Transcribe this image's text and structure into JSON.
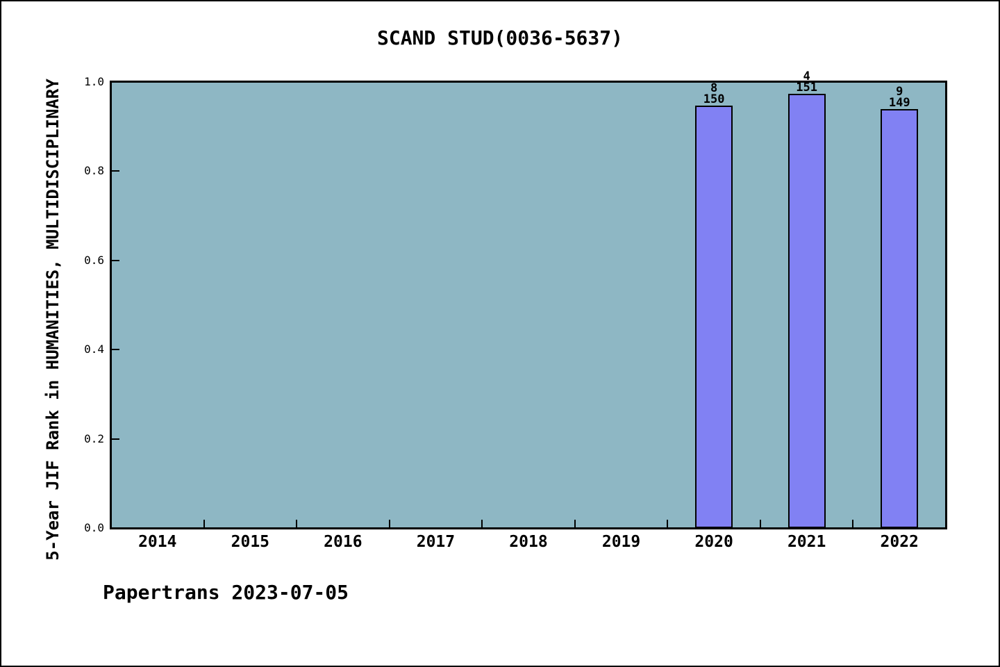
{
  "header": {
    "title": "SCAND STUD(0036-5637)"
  },
  "footer": {
    "credit": "Papertrans 2023-07-05"
  },
  "colors": {
    "figure_background": "#ffffff",
    "figure_border": "#000000",
    "plot_background": "#8eb7c4",
    "bar_fill": "#8181f3",
    "bar_edge": "#000000",
    "axis_color": "#000000",
    "text_color": "#000000"
  },
  "chart_data": {
    "type": "bar",
    "title": "SCAND STUD(0036-5637)",
    "xlabel": "",
    "ylabel": "5-Year JIF Rank in HUMANITIES, MULTIDISCIPLINARY",
    "ylim": [
      0.0,
      1.0
    ],
    "grid": false,
    "legend": false,
    "yticks": [
      {
        "value": 0.0,
        "label": "0.0"
      },
      {
        "value": 0.2,
        "label": "0.2"
      },
      {
        "value": 0.4,
        "label": "0.4"
      },
      {
        "value": 0.6,
        "label": "0.6"
      },
      {
        "value": 0.8,
        "label": "0.8"
      },
      {
        "value": 1.0,
        "label": "1.0"
      }
    ],
    "categories": [
      "2014",
      "2015",
      "2016",
      "2017",
      "2018",
      "2019",
      "2020",
      "2021",
      "2022"
    ],
    "series": [
      {
        "name": "5-Year JIF Rank",
        "values": [
          null,
          null,
          null,
          null,
          null,
          null,
          0.9467,
          0.9735,
          0.9396
        ]
      }
    ],
    "bars": [
      {
        "category": "2020",
        "value": 0.9467,
        "rank": "8",
        "total": "150"
      },
      {
        "category": "2021",
        "value": 0.9735,
        "rank": "4",
        "total": "151"
      },
      {
        "category": "2022",
        "value": 0.9396,
        "rank": "9",
        "total": "149"
      }
    ]
  }
}
